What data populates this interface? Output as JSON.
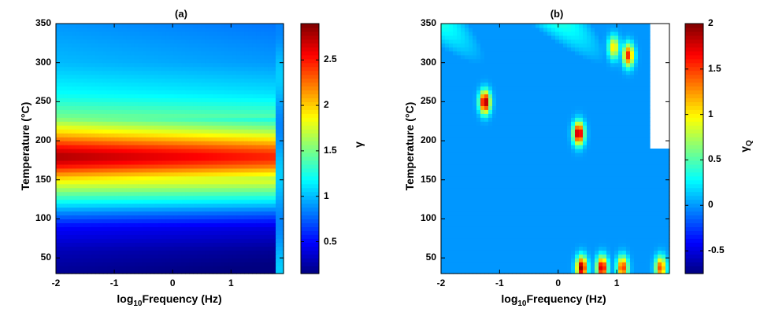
{
  "chart_data": [
    {
      "type": "heatmap",
      "title": "(a)",
      "xlabel_base": "log",
      "xlabel_sub": "10",
      "xlabel_rest": "Frequency (Hz)",
      "ylabel": "Temperature (°C)",
      "xlim": [
        -2,
        1.9
      ],
      "ylim": [
        30,
        350
      ],
      "xticks": [
        "-2",
        "-1",
        "0",
        "1"
      ],
      "xtick_values": [
        -2,
        -1,
        0,
        1
      ],
      "yticks": [
        "50",
        "100",
        "150",
        "200",
        "250",
        "300",
        "350"
      ],
      "ytick_values": [
        50,
        100,
        150,
        200,
        250,
        300,
        350
      ],
      "colorbar": {
        "label": "γ",
        "range": [
          0.15,
          2.9
        ],
        "ticks": [
          "0.5",
          "1",
          "1.5",
          "2",
          "2.5"
        ],
        "tick_values": [
          0.5,
          1,
          1.5,
          2,
          2.5
        ]
      },
      "colormap": "jet",
      "description_of_field": {
        "temperature": [
          30,
          60,
          90,
          110,
          130,
          150,
          170,
          180,
          190,
          210,
          230,
          260,
          300,
          350
        ],
        "gamma": [
          0.2,
          0.3,
          0.5,
          0.9,
          1.4,
          1.9,
          2.6,
          2.8,
          2.6,
          2.0,
          1.5,
          1.2,
          1.0,
          0.9
        ]
      }
    },
    {
      "type": "heatmap",
      "title": "(b)",
      "xlabel_base": "log",
      "xlabel_sub": "10",
      "xlabel_rest": "Frequency (Hz)",
      "ylabel": "Temperature (°C)",
      "xlim": [
        -2,
        1.9
      ],
      "ylim": [
        30,
        350
      ],
      "xticks": [
        "-2",
        "-1",
        "0",
        "1"
      ],
      "xtick_values": [
        -2,
        -1,
        0,
        1
      ],
      "yticks": [
        "50",
        "100",
        "150",
        "200",
        "250",
        "300",
        "350"
      ],
      "ytick_values": [
        50,
        100,
        150,
        200,
        250,
        300,
        350
      ],
      "colorbar": {
        "label_base": "γ",
        "label_sub": "Q",
        "range": [
          -0.75,
          2.0
        ],
        "ticks": [
          "-0.5",
          "0",
          "0.5",
          "1",
          "1.5",
          "2"
        ],
        "tick_values": [
          -0.5,
          0,
          0.5,
          1,
          1.5,
          2
        ]
      },
      "colormap": "jet",
      "hotspots": [
        {
          "x": -1.25,
          "y": 250,
          "value": 2.0
        },
        {
          "x": 0.35,
          "y": 210,
          "value": 2.0
        },
        {
          "x": 1.2,
          "y": 310,
          "value": 1.6
        },
        {
          "x": 0.95,
          "y": 320,
          "value": 1.1
        },
        {
          "x": 0.4,
          "y": 38,
          "value": 2.0
        },
        {
          "x": 0.75,
          "y": 38,
          "value": 1.9
        },
        {
          "x": 1.1,
          "y": 38,
          "value": 1.6
        },
        {
          "x": 1.75,
          "y": 38,
          "value": 1.5
        }
      ]
    }
  ]
}
